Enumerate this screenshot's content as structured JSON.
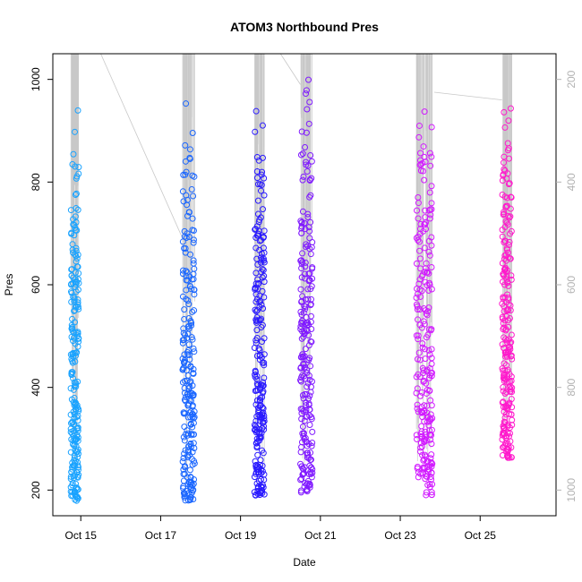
{
  "chart_data": {
    "type": "scatter",
    "title": "ATOM3 Northbound Pres",
    "xlabel": "Date",
    "ylabel": "Pres",
    "x_tick_labels": [
      "Oct 15",
      "Oct 17",
      "Oct 19",
      "Oct 21",
      "Oct 23",
      "Oct 25"
    ],
    "x_tick_days": [
      15,
      17,
      19,
      21,
      23,
      25
    ],
    "xlim_days": [
      14.3,
      26.9
    ],
    "ylim": [
      150,
      1050
    ],
    "y_ticks": [
      200,
      400,
      600,
      800,
      1000
    ],
    "right_axis_ticks": [
      200,
      400,
      600,
      800,
      1000
    ],
    "right_axis_color": "#b3b3b3",
    "marker": "open-circle",
    "grid": false,
    "connector_color": "#c8c8c8",
    "color_start": "#1aa3ff",
    "color_end": "#ff1acc",
    "series": [
      {
        "day_start": 14.75,
        "day_end": 14.95,
        "p_min": 175,
        "p_max": 980,
        "color": "#1aa3ff"
      },
      {
        "day_start": 17.55,
        "day_end": 17.85,
        "p_min": 175,
        "p_max": 1012,
        "color": "#1a66ff"
      },
      {
        "day_start": 19.35,
        "day_end": 19.6,
        "p_min": 185,
        "p_max": 998,
        "color": "#2a1aff"
      },
      {
        "day_start": 20.5,
        "day_end": 20.8,
        "p_min": 190,
        "p_max": 1022,
        "color": "#801aff"
      },
      {
        "day_start": 23.4,
        "day_end": 23.8,
        "p_min": 185,
        "p_max": 993,
        "color": "#d11aff"
      },
      {
        "day_start": 25.55,
        "day_end": 25.8,
        "p_min": 258,
        "p_max": 990,
        "color": "#ff1acc"
      }
    ]
  }
}
